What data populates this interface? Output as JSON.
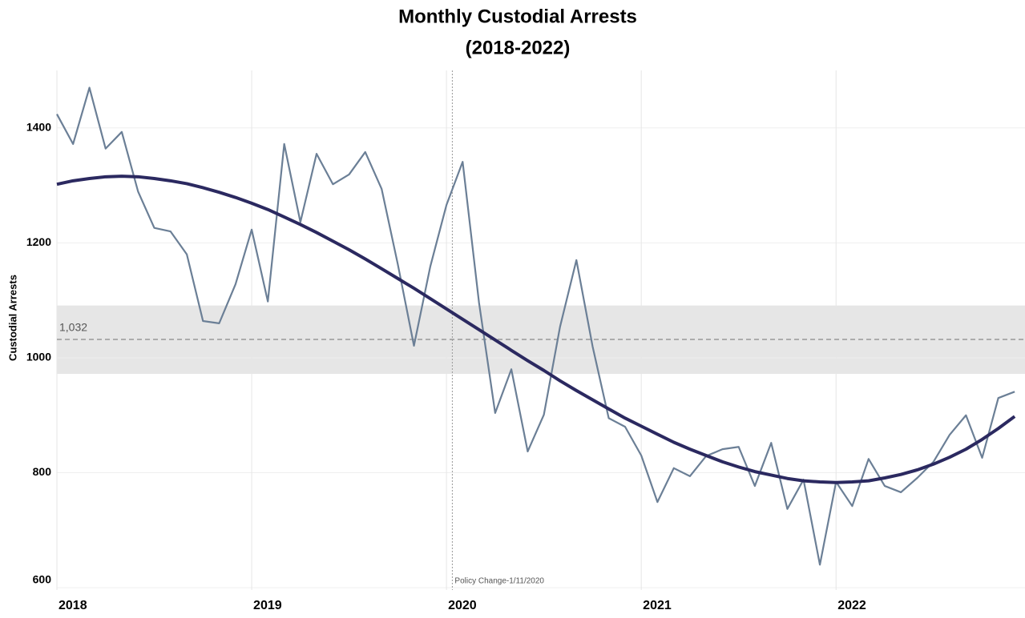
{
  "chart_data": {
    "type": "line",
    "title": "Monthly Custodial Arrests",
    "subtitle": "(2018-2022)",
    "y_label": "Custodial Arrests",
    "x": [
      2018,
      2018.083,
      2018.167,
      2018.25,
      2018.333,
      2018.417,
      2018.5,
      2018.583,
      2018.667,
      2018.75,
      2018.833,
      2018.917,
      2019,
      2019.083,
      2019.167,
      2019.25,
      2019.333,
      2019.417,
      2019.5,
      2019.583,
      2019.667,
      2019.75,
      2019.833,
      2019.917,
      2020,
      2020.083,
      2020.167,
      2020.25,
      2020.333,
      2020.417,
      2020.5,
      2020.583,
      2020.667,
      2020.75,
      2020.833,
      2020.917,
      2021,
      2021.083,
      2021.167,
      2021.25,
      2021.333,
      2021.417,
      2021.5,
      2021.583,
      2021.667,
      2021.75,
      2021.833,
      2021.917,
      2022,
      2022.083,
      2022.167,
      2022.25,
      2022.333,
      2022.417,
      2022.5,
      2022.583,
      2022.667,
      2022.75,
      2022.833,
      2022.917
    ],
    "series": [
      {
        "color": "#6b7f96",
        "width": 2.2,
        "values": [
          1424,
          1372,
          1470,
          1364,
          1393,
          1289,
          1226,
          1220,
          1180,
          1064,
          1060,
          1128,
          1223,
          1098,
          1372,
          1236,
          1355,
          1302,
          1319,
          1358,
          1294,
          1163,
          1021,
          1159,
          1266,
          1341,
          1096,
          904,
          980,
          837,
          901,
          1054,
          1170,
          1020,
          895,
          880,
          830,
          749,
          808,
          794,
          829,
          841,
          845,
          777,
          852,
          737,
          788,
          640,
          784,
          742,
          824,
          777,
          766,
          791,
          819,
          866,
          900,
          826,
          930,
          941
        ]
      },
      {
        "color": "#2b2960",
        "width": 4,
        "values": [
          1302,
          1308,
          1312,
          1315,
          1316,
          1315,
          1312,
          1308,
          1303,
          1296,
          1288,
          1279,
          1269,
          1258,
          1245,
          1232,
          1218,
          1203,
          1188,
          1172,
          1155,
          1138,
          1121,
          1103,
          1085,
          1067,
          1049,
          1031,
          1013,
          995,
          978,
          960,
          943,
          927,
          911,
          895,
          881,
          867,
          853,
          841,
          830,
          819,
          810,
          802,
          796,
          790,
          786,
          784,
          783,
          784,
          786,
          791,
          797,
          805,
          815,
          827,
          841,
          858,
          877,
          898
        ]
      }
    ],
    "xlim": [
      2018,
      2022.97
    ],
    "xticks": [
      2018,
      2019,
      2020,
      2021,
      2022
    ],
    "ylim": [
      596,
      1500
    ],
    "yticks": [
      600,
      800,
      1000,
      1200,
      1400
    ],
    "grid": true,
    "reference_line": {
      "value": 1032,
      "label": "1,032"
    },
    "reference_band": [
      972,
      1091
    ],
    "annotation": {
      "text": "Policy Change-1/11/2020",
      "x": 2020.03
    }
  }
}
